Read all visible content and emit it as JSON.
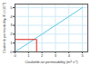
{
  "chart_data": {
    "type": "line",
    "xlabel": "Coulomb air permeability (m² s⁻¹)",
    "ylabel": "Coulomb permeability, K (×10⁻³)",
    "x": [
      0,
      1,
      2,
      3,
      4,
      5
    ],
    "series": [
      {
        "name": "K",
        "color": "#5bc8e8",
        "values": [
          0,
          1,
          2,
          3,
          4,
          5
        ]
      }
    ],
    "xlim": [
      0,
      5.4
    ],
    "xticks": [
      0,
      1,
      2,
      3,
      4,
      5
    ],
    "ylim": [
      0,
      5.4
    ],
    "yticks": [
      0,
      1,
      2,
      3,
      4,
      5
    ],
    "grid": true,
    "highlight": {
      "x": 1.6,
      "y": 1.4,
      "color": "#e02020"
    }
  }
}
